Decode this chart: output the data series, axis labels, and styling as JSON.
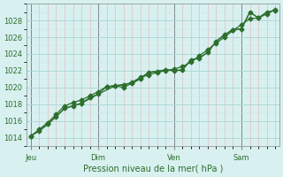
{
  "title": "",
  "xlabel": "Pression niveau de la mer( hPa )",
  "ylabel": "",
  "bg_color": "#d8f0f0",
  "grid_color_major": "#b0d8d8",
  "grid_color_minor": "#c8e8e8",
  "line_color": "#2d6e2d",
  "marker_color": "#2d6e2d",
  "axis_color": "#888888",
  "tick_label_color": "#2d6e2d",
  "xlabel_color": "#2d6e2d",
  "ylim": [
    1013,
    1030
  ],
  "yticks": [
    1014,
    1016,
    1018,
    1020,
    1022,
    1024,
    1026,
    1028
  ],
  "day_labels": [
    "Jeu",
    "Dim",
    "Ven",
    "Sam"
  ],
  "day_positions": [
    0,
    8,
    17,
    25
  ],
  "series1_x": [
    0,
    1,
    2,
    3,
    4,
    5,
    6,
    7,
    8,
    9,
    10,
    11,
    12,
    13,
    14,
    15,
    16,
    17,
    18,
    19,
    20,
    21,
    22,
    23,
    24,
    25,
    26,
    27,
    28,
    29
  ],
  "series1_y": [
    1014.2,
    1014.8,
    1015.6,
    1016.5,
    1017.5,
    1017.8,
    1018.1,
    1018.8,
    1019.2,
    1020.1,
    1020.2,
    1020.0,
    1020.5,
    1021.0,
    1021.8,
    1021.9,
    1022.1,
    1022.0,
    1022.1,
    1023.3,
    1023.5,
    1024.2,
    1025.5,
    1026.3,
    1026.9,
    1027.0,
    1029.0,
    1028.3,
    1028.8,
    1029.3
  ],
  "series2_x": [
    0,
    1,
    2,
    3,
    4,
    5,
    6,
    7,
    8,
    9,
    10,
    11,
    12,
    13,
    14,
    15,
    16,
    17,
    18,
    19,
    20,
    21,
    22,
    23,
    24,
    25,
    26,
    27,
    28,
    29
  ],
  "series2_y": [
    1014.2,
    1015.0,
    1015.8,
    1016.8,
    1017.8,
    1018.2,
    1018.5,
    1019.0,
    1019.5,
    1020.1,
    1020.2,
    1020.3,
    1020.6,
    1021.2,
    1021.5,
    1021.8,
    1022.0,
    1022.2,
    1022.5,
    1023.0,
    1023.8,
    1024.5,
    1025.3,
    1026.0,
    1026.8,
    1027.5,
    1028.2,
    1028.3,
    1029.0,
    1029.2
  ],
  "series3_x": [
    0,
    2,
    4,
    6,
    8,
    10,
    12,
    14,
    16,
    17,
    18,
    19,
    20,
    21,
    22,
    23,
    24,
    25,
    26,
    27,
    28,
    29
  ],
  "series3_y": [
    1014.2,
    1015.6,
    1017.5,
    1018.1,
    1019.2,
    1020.2,
    1020.5,
    1021.8,
    1022.1,
    1022.0,
    1022.1,
    1023.3,
    1023.5,
    1024.2,
    1025.5,
    1026.3,
    1026.9,
    1027.0,
    1029.0,
    1028.3,
    1028.8,
    1029.3
  ]
}
